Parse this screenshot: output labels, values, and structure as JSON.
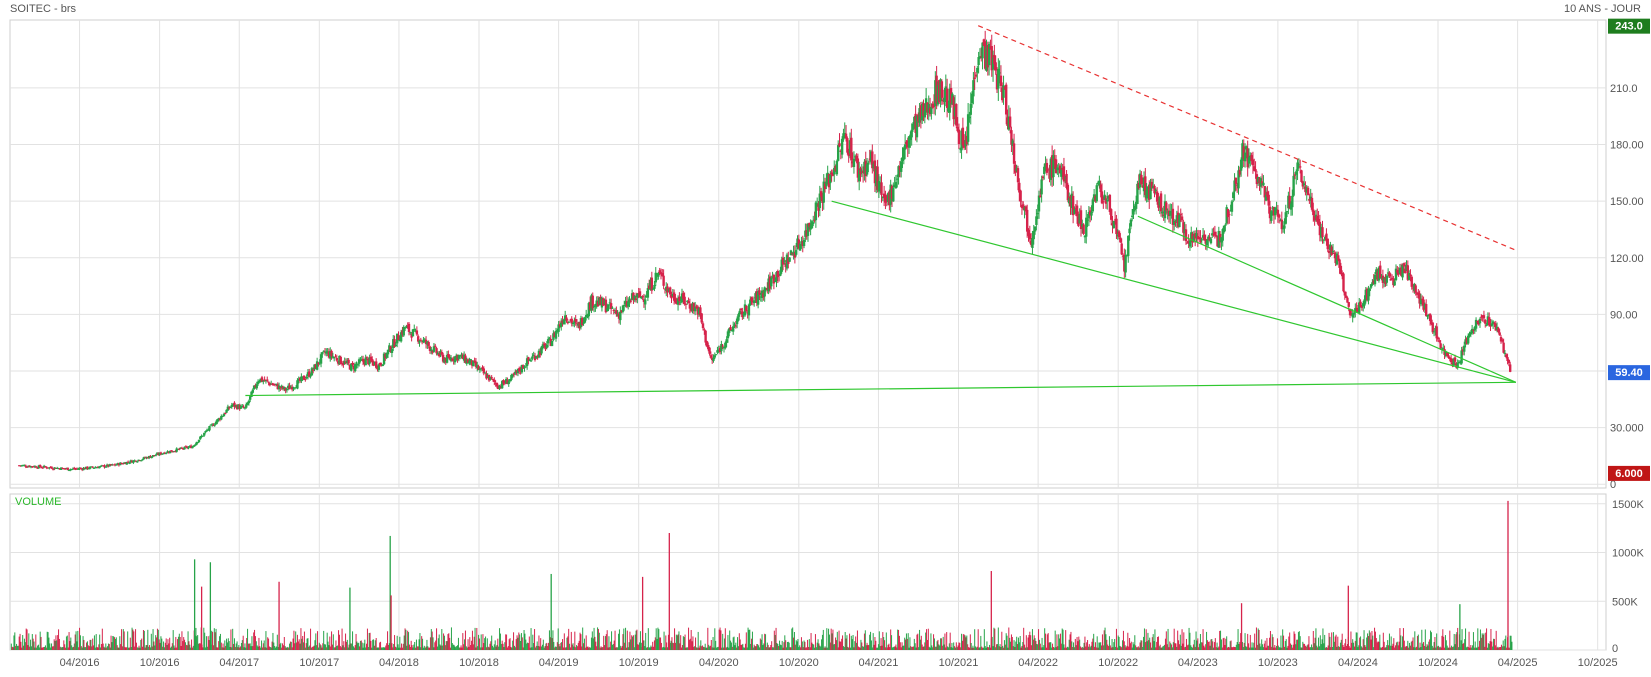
{
  "header": {
    "title": "SOITEC - brs",
    "period": "10 ANS - JOUR"
  },
  "colors": {
    "up": "#27a349",
    "down": "#d6234b",
    "trend_support": "#2fc72f",
    "trend_resistance": "#e83232",
    "badge_high": "#1e7d1e",
    "badge_last": "#2a66e0",
    "badge_low": "#c01616",
    "grid": "#e2e2e2"
  },
  "chart_data": [
    {
      "type": "candlestick",
      "title": "SOITEC - brs",
      "subtitle": "10 ANS - JOUR",
      "grid": true,
      "y_ticks": [
        0,
        30,
        60,
        90,
        120,
        150,
        180,
        210
      ],
      "y_tick_labels": [
        "0",
        "30.000",
        "",
        "90.00",
        "120.00",
        "150.00",
        "180.00",
        "210.0"
      ],
      "ylim": [
        -2,
        246
      ],
      "x_ticks": [
        "2016-04",
        "2016-10",
        "2017-04",
        "2017-10",
        "2018-04",
        "2018-10",
        "2019-04",
        "2019-10",
        "2020-04",
        "2020-10",
        "2021-04",
        "2021-10",
        "2022-04",
        "2022-10",
        "2023-04",
        "2023-10",
        "2024-04",
        "2024-10",
        "2025-04",
        "2025-10"
      ],
      "x_tick_labels": [
        "04/2016",
        "10/2016",
        "04/2017",
        "10/2017",
        "04/2018",
        "10/2018",
        "04/2019",
        "10/2019",
        "04/2020",
        "10/2020",
        "04/2021",
        "10/2021",
        "04/2022",
        "10/2022",
        "04/2023",
        "10/2023",
        "04/2024",
        "10/2024",
        "04/2025",
        "10/2025"
      ],
      "xlim": [
        "2015-10-25",
        "2025-10-20"
      ],
      "close_series": [
        [
          "2015-11",
          10
        ],
        [
          "2016-01",
          9
        ],
        [
          "2016-03",
          8
        ],
        [
          "2016-04",
          8.5
        ],
        [
          "2016-06",
          10
        ],
        [
          "2016-08",
          13
        ],
        [
          "2016-10",
          17
        ],
        [
          "2016-12",
          20
        ],
        [
          "2017-01",
          28
        ],
        [
          "2017-02",
          35
        ],
        [
          "2017-03",
          42
        ],
        [
          "2017-04",
          40
        ],
        [
          "2017-05",
          56
        ],
        [
          "2017-06",
          53
        ],
        [
          "2017-07",
          50
        ],
        [
          "2017-08",
          54
        ],
        [
          "2017-09",
          60
        ],
        [
          "2017-10",
          70
        ],
        [
          "2017-12",
          62
        ],
        [
          "2018-01",
          66
        ],
        [
          "2018-02",
          63
        ],
        [
          "2018-03",
          73
        ],
        [
          "2018-04",
          83
        ],
        [
          "2018-05",
          78
        ],
        [
          "2018-06",
          72
        ],
        [
          "2018-07",
          66
        ],
        [
          "2018-08",
          68
        ],
        [
          "2018-09",
          64
        ],
        [
          "2018-10",
          58
        ],
        [
          "2018-11",
          52
        ],
        [
          "2018-12",
          56
        ],
        [
          "2019-01",
          64
        ],
        [
          "2019-02",
          70
        ],
        [
          "2019-03",
          76
        ],
        [
          "2019-04",
          90
        ],
        [
          "2019-05",
          83
        ],
        [
          "2019-06",
          97
        ],
        [
          "2019-07",
          95
        ],
        [
          "2019-08",
          90
        ],
        [
          "2019-09",
          98
        ],
        [
          "2019-10",
          100
        ],
        [
          "2019-11",
          112
        ],
        [
          "2019-12",
          100
        ],
        [
          "2020-01",
          97
        ],
        [
          "2020-02",
          92
        ],
        [
          "2020-03",
          65
        ],
        [
          "2020-04",
          76
        ],
        [
          "2020-05",
          88
        ],
        [
          "2020-06",
          96
        ],
        [
          "2020-07",
          103
        ],
        [
          "2020-08",
          113
        ],
        [
          "2020-09",
          122
        ],
        [
          "2020-10",
          132
        ],
        [
          "2020-11",
          150
        ],
        [
          "2020-12",
          165
        ],
        [
          "2021-01",
          185
        ],
        [
          "2021-02",
          165
        ],
        [
          "2021-03",
          172
        ],
        [
          "2021-04",
          146
        ],
        [
          "2021-05",
          165
        ],
        [
          "2021-06",
          187
        ],
        [
          "2021-07",
          197
        ],
        [
          "2021-08",
          210
        ],
        [
          "2021-09",
          202
        ],
        [
          "2021-10",
          175
        ],
        [
          "2021-11",
          232
        ],
        [
          "2021-12",
          225
        ],
        [
          "2022-01",
          205
        ],
        [
          "2022-02",
          160
        ],
        [
          "2022-03",
          130
        ],
        [
          "2022-04",
          165
        ],
        [
          "2022-05",
          170
        ],
        [
          "2022-06",
          150
        ],
        [
          "2022-07",
          135
        ],
        [
          "2022-08",
          158
        ],
        [
          "2022-09",
          145
        ],
        [
          "2022-10",
          115
        ],
        [
          "2022-11",
          160
        ],
        [
          "2022-12",
          155
        ],
        [
          "2023-01",
          145
        ],
        [
          "2023-02",
          140
        ],
        [
          "2023-03",
          130
        ],
        [
          "2023-04",
          132
        ],
        [
          "2023-05",
          128
        ],
        [
          "2023-06",
          150
        ],
        [
          "2023-07",
          178
        ],
        [
          "2023-08",
          163
        ],
        [
          "2023-09",
          145
        ],
        [
          "2023-10",
          138
        ],
        [
          "2023-11",
          168
        ],
        [
          "2023-12",
          150
        ],
        [
          "2024-01",
          130
        ],
        [
          "2024-02",
          118
        ],
        [
          "2024-03",
          88
        ],
        [
          "2024-04",
          98
        ],
        [
          "2024-05",
          112
        ],
        [
          "2024-06",
          108
        ],
        [
          "2024-07",
          115
        ],
        [
          "2024-08",
          102
        ],
        [
          "2024-09",
          85
        ],
        [
          "2024-10",
          70
        ],
        [
          "2024-11",
          63
        ],
        [
          "2024-12",
          82
        ],
        [
          "2025-01",
          88
        ],
        [
          "2025-02",
          82
        ],
        [
          "2025-03",
          60
        ]
      ],
      "trendlines": [
        {
          "kind": "support",
          "from": [
            "2017-04",
            47
          ],
          "to": [
            "2025-03",
            54
          ]
        },
        {
          "kind": "support",
          "from": [
            "2020-12",
            150
          ],
          "to": [
            "2025-03",
            54
          ]
        },
        {
          "kind": "support",
          "from": [
            "2022-11",
            142
          ],
          "to": [
            "2025-03",
            54
          ]
        },
        {
          "kind": "resistance",
          "style": "dashed",
          "from": [
            "2021-11",
            243
          ],
          "to": [
            "2025-03",
            124
          ]
        }
      ],
      "price_badges": [
        {
          "label": "243.0",
          "value": 243,
          "kind": "high"
        },
        {
          "label": "59.40",
          "value": 59.4,
          "kind": "last"
        },
        {
          "label": "6.000",
          "value": 6,
          "kind": "low"
        }
      ]
    },
    {
      "type": "bar",
      "title": "VOLUME",
      "grid": true,
      "y_ticks": [
        0,
        500000,
        1000000,
        1500000
      ],
      "y_tick_labels": [
        "0",
        "500K",
        "1000K",
        "1500K"
      ],
      "ylim": [
        0,
        1600000
      ],
      "x_ticks": [
        "2016-04",
        "2016-10",
        "2017-04",
        "2017-10",
        "2018-04",
        "2018-10",
        "2019-04",
        "2019-10",
        "2020-04",
        "2020-10",
        "2021-04",
        "2021-10",
        "2022-04",
        "2022-10",
        "2023-04",
        "2023-10",
        "2024-04",
        "2024-10",
        "2025-04",
        "2025-10"
      ],
      "x_tick_labels": [
        "04/2016",
        "10/2016",
        "04/2017",
        "10/2017",
        "04/2018",
        "10/2018",
        "04/2019",
        "10/2019",
        "04/2020",
        "10/2020",
        "04/2021",
        "10/2021",
        "04/2022",
        "10/2022",
        "04/2023",
        "10/2023",
        "04/2024",
        "10/2024",
        "04/2025",
        "10/2025"
      ],
      "typical_volume": 80000,
      "spikes": [
        [
          "2016-12-20",
          930000,
          "up"
        ],
        [
          "2017-01-25",
          900000,
          "up"
        ],
        [
          "2017-01-05",
          650000,
          "down"
        ],
        [
          "2017-07-01",
          700000,
          "down"
        ],
        [
          "2017-12-10",
          640000,
          "up"
        ],
        [
          "2018-03-12",
          1170000,
          "up"
        ],
        [
          "2018-03-14",
          560000,
          "down"
        ],
        [
          "2019-03-15",
          780000,
          "up"
        ],
        [
          "2019-10-10",
          750000,
          "down"
        ],
        [
          "2019-12-10",
          1200000,
          "down"
        ],
        [
          "2021-12-15",
          810000,
          "down"
        ],
        [
          "2023-07-10",
          480000,
          "down"
        ],
        [
          "2024-03-10",
          660000,
          "down"
        ],
        [
          "2024-11-20",
          470000,
          "up"
        ],
        [
          "2025-03-10",
          1530000,
          "down"
        ]
      ]
    }
  ]
}
